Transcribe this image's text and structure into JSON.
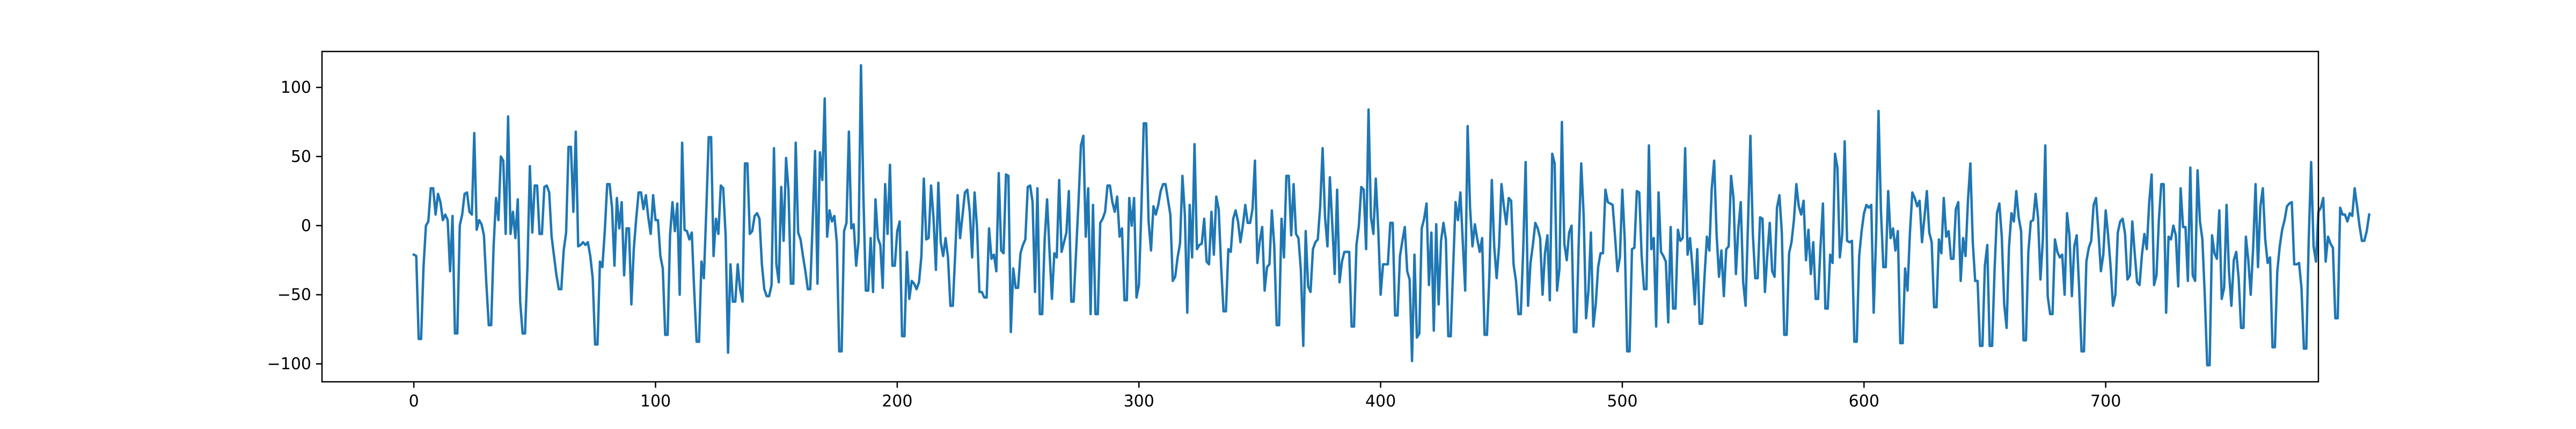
{
  "chart_data": {
    "type": "line",
    "title": "",
    "xlabel": "",
    "ylabel": "",
    "xlim": [
      -38,
      788
    ],
    "ylim": [
      -113,
      126
    ],
    "x_ticks": [
      0,
      100,
      200,
      300,
      400,
      500,
      600,
      700
    ],
    "y_ticks": [
      -100,
      -50,
      0,
      50,
      100
    ],
    "x_tick_labels": [
      "0",
      "100",
      "200",
      "300",
      "400",
      "500",
      "600",
      "700"
    ],
    "y_tick_labels": [
      "−100",
      "−50",
      "0",
      "50",
      "100"
    ],
    "grid": false,
    "legend": "none",
    "series": [
      {
        "color": "#1f77b4",
        "x_start": 0,
        "x_step": 1,
        "values": [
          -21,
          -22,
          -82,
          -82,
          -30,
          0,
          3,
          27,
          27,
          8,
          23,
          17,
          4,
          8,
          4,
          -33,
          7,
          -78,
          -78,
          0,
          8,
          23,
          24,
          10,
          8,
          67,
          -3,
          4,
          1,
          -7,
          -42,
          -72,
          -72,
          -15,
          20,
          4,
          50,
          47,
          -6,
          79,
          -6,
          10,
          -9,
          19,
          -55,
          -78,
          -78,
          -30,
          43,
          -5,
          29,
          29,
          -6,
          -6,
          28,
          29,
          24,
          -8,
          -22,
          -36,
          -46,
          -46,
          -18,
          -5,
          57,
          57,
          10,
          68,
          -15,
          -14,
          -12,
          -14,
          -12,
          -22,
          -38,
          -86,
          -86,
          -26,
          -30,
          -4,
          30,
          30,
          13,
          -29,
          20,
          -2,
          17,
          -36,
          -2,
          -2,
          -57,
          -17,
          5,
          24,
          24,
          12,
          22,
          6,
          -6,
          22,
          4,
          4,
          -22,
          -31,
          -79,
          -79,
          -7,
          17,
          -4,
          16,
          -50,
          60,
          -3,
          -4,
          -10,
          -5,
          -47,
          -84,
          -84,
          -26,
          -38,
          11,
          64,
          64,
          -22,
          5,
          -6,
          29,
          27,
          -7,
          -92,
          -28,
          -55,
          -55,
          -28,
          -46,
          -55,
          45,
          45,
          -6,
          -4,
          7,
          9,
          5,
          -28,
          -46,
          -51,
          -51,
          -43,
          56,
          -28,
          -41,
          28,
          -11,
          49,
          26,
          -42,
          -42,
          60,
          -5,
          -10,
          -22,
          -33,
          -46,
          -46,
          2,
          54,
          -42,
          53,
          33,
          92,
          -8,
          11,
          3,
          7,
          -12,
          -91,
          -91,
          -4,
          2,
          68,
          -2,
          1,
          -29,
          -11,
          116,
          22,
          -47,
          -47,
          -9,
          -48,
          19,
          -9,
          -14,
          -45,
          30,
          -6,
          44,
          -29,
          -29,
          -4,
          3,
          -80,
          -80,
          -19,
          -53,
          -40,
          -42,
          -46,
          -41,
          -22,
          34,
          -10,
          -9,
          29,
          6,
          -32,
          31,
          -12,
          -22,
          -9,
          -23,
          -58,
          -58,
          -20,
          22,
          -9,
          7,
          24,
          26,
          10,
          -23,
          24,
          -1,
          -48,
          -48,
          -52,
          -52,
          -2,
          -24,
          -21,
          -33,
          38,
          -18,
          -20,
          37,
          36,
          -77,
          -31,
          -45,
          -45,
          -20,
          -14,
          -10,
          28,
          29,
          17,
          -48,
          27,
          -64,
          -64,
          -10,
          19,
          -18,
          -53,
          -20,
          -23,
          33,
          -19,
          -12,
          -5,
          25,
          -55,
          -55,
          -19,
          17,
          58,
          65,
          -8,
          27,
          -64,
          15,
          -64,
          -64,
          2,
          5,
          10,
          29,
          29,
          17,
          10,
          21,
          -8,
          -2,
          -54,
          -54,
          20,
          0,
          20,
          -52,
          -43,
          11,
          74,
          74,
          3,
          -18,
          14,
          8,
          15,
          25,
          30,
          30,
          19,
          8,
          -40,
          -37,
          -23,
          -13,
          36,
          8,
          -63,
          15,
          -23,
          59,
          -17,
          -14,
          -13,
          5,
          -26,
          -28,
          10,
          -21,
          21,
          12,
          -29,
          -62,
          -62,
          -17,
          -19,
          5,
          11,
          3,
          -12,
          0,
          15,
          2,
          2,
          12,
          47,
          -27,
          -11,
          -1,
          -47,
          -30,
          -28,
          11,
          -15,
          -72,
          -72,
          5,
          -23,
          36,
          36,
          -7,
          30,
          -6,
          -9,
          -32,
          -87,
          -4,
          -44,
          -48,
          -17,
          -12,
          -10,
          14,
          56,
          6,
          -15,
          35,
          1,
          -35,
          26,
          -41,
          -26,
          -19,
          -19,
          -19,
          -73,
          -73,
          -14,
          0,
          28,
          26,
          -17,
          84,
          6,
          -6,
          34,
          -2,
          -50,
          -28,
          -28,
          -28,
          2,
          2,
          -65,
          -65,
          -22,
          -11,
          -1,
          -33,
          -39,
          -98,
          -21,
          -81,
          -78,
          -2,
          5,
          16,
          -43,
          -5,
          -76,
          1,
          -57,
          -11,
          2,
          -10,
          -80,
          -80,
          -31,
          17,
          4,
          24,
          -12,
          -47,
          72,
          13,
          -15,
          1,
          -10,
          -19,
          -9,
          -79,
          -79,
          -36,
          33,
          -15,
          -38,
          -15,
          30,
          14,
          1,
          20,
          18,
          -28,
          -40,
          -64,
          -64,
          -17,
          46,
          -58,
          -27,
          -14,
          2,
          -2,
          -9,
          -50,
          -20,
          -7,
          -54,
          52,
          45,
          -47,
          -31,
          75,
          -13,
          -25,
          -5,
          0,
          -77,
          -77,
          -10,
          45,
          8,
          -67,
          -47,
          -5,
          -73,
          -57,
          -30,
          -20,
          -20,
          26,
          17,
          16,
          15,
          -8,
          -33,
          -23,
          26,
          -10,
          -91,
          -91,
          -17,
          -16,
          25,
          24,
          -22,
          -46,
          -46,
          58,
          -17,
          -9,
          -73,
          24,
          -19,
          -22,
          -26,
          -70,
          -1,
          -60,
          -60,
          -3,
          -11,
          -9,
          56,
          -21,
          -9,
          -30,
          -57,
          -17,
          -71,
          -71,
          -37,
          -8,
          -18,
          27,
          47,
          -6,
          -37,
          -18,
          -51,
          -17,
          -15,
          36,
          20,
          -35,
          -2,
          17,
          -41,
          -58,
          1,
          65,
          -6,
          -38,
          -38,
          6,
          5,
          -48,
          -21,
          2,
          -33,
          -37,
          13,
          22,
          -5,
          -79,
          -79,
          -20,
          -12,
          4,
          30,
          14,
          8,
          18,
          -25,
          -3,
          -35,
          -12,
          -53,
          -53,
          -15,
          16,
          -60,
          -60,
          -21,
          -27,
          52,
          42,
          -23,
          -6,
          61,
          -11,
          -12,
          -11,
          -84,
          -84,
          -22,
          -4,
          9,
          15,
          13,
          15,
          -63,
          -8,
          83,
          11,
          -30,
          -30,
          25,
          -9,
          -2,
          -18,
          -4,
          -85,
          -85,
          -31,
          -47,
          -5,
          24,
          20,
          14,
          18,
          -12,
          6,
          25,
          -5,
          -12,
          -59,
          -59,
          -10,
          -20,
          20,
          -8,
          -4,
          -24,
          -24,
          12,
          17,
          -40,
          -9,
          -22,
          18,
          45,
          -12,
          -40,
          -40,
          -87,
          -87,
          -29,
          -14,
          -87,
          -87,
          -33,
          9,
          16,
          -8,
          -57,
          -74,
          -15,
          9,
          3,
          25,
          6,
          -4,
          -83,
          -83,
          -19,
          3,
          4,
          23,
          6,
          -39,
          -10,
          58,
          -51,
          -64,
          -64,
          -10,
          -19,
          -23,
          -21,
          -50,
          9,
          -7,
          -51,
          -15,
          -7,
          -45,
          -91,
          -91,
          -26,
          -16,
          -11,
          15,
          20,
          -5,
          -33,
          -21,
          11,
          -7,
          -29,
          -58,
          -50,
          -5,
          3,
          5,
          -6,
          -39,
          -36,
          3,
          -20,
          -41,
          -43,
          -21,
          -6,
          -17,
          17,
          37,
          -43,
          -36,
          4,
          30,
          30,
          -63,
          -8,
          -10,
          0,
          -7,
          -44,
          27,
          -1,
          -1,
          -40,
          42,
          -36,
          -40,
          40,
          3,
          -10,
          -51,
          -101,
          -101,
          -7,
          -20,
          -24,
          11,
          -53,
          -45,
          15,
          -33,
          -58,
          -25,
          -19,
          -38,
          -74,
          -74,
          -8,
          -25,
          -50,
          -16,
          30,
          -30,
          14,
          27,
          -10,
          -27,
          -23,
          -88,
          -88,
          -33,
          -15,
          -3,
          4,
          14,
          16,
          17,
          -28,
          -28,
          -27,
          -45,
          -89,
          -89,
          -10,
          46,
          -15,
          -26,
          10,
          13,
          20,
          -26,
          -8,
          -13,
          -16,
          -67,
          -67,
          13,
          8,
          8,
          3,
          9,
          7,
          27,
          14,
          0,
          -11,
          -11,
          -4,
          8
        ]
      }
    ]
  }
}
